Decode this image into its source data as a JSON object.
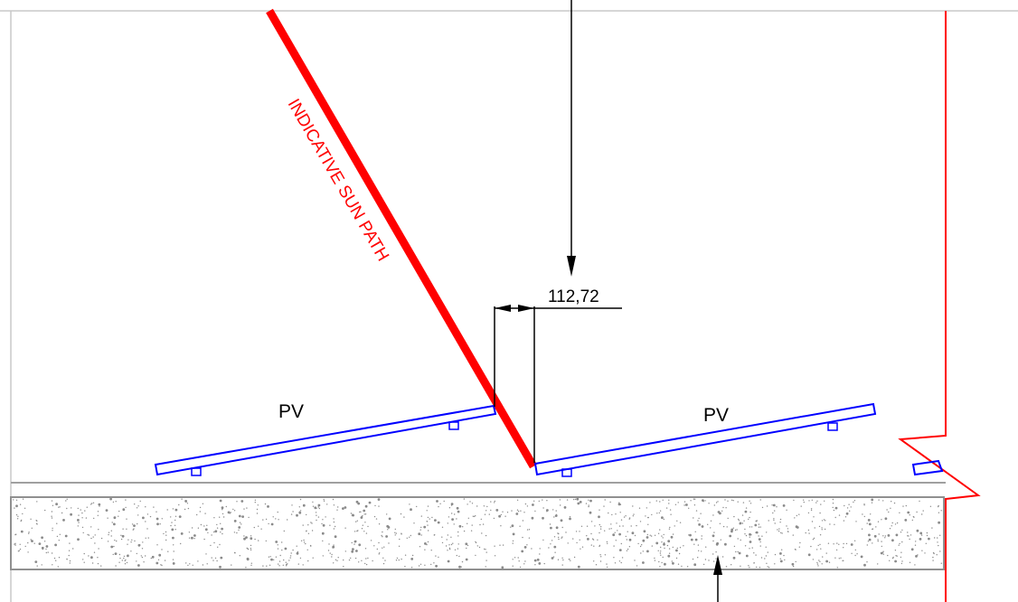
{
  "labels": {
    "sun_path": "INDICATIVE SUN PATH",
    "dimension": "112,72",
    "panel_left": "PV",
    "panel_right": "PV"
  },
  "colors": {
    "sun_path": "#ff0000",
    "panel_outline": "#0000ff",
    "parapet": "#ff0000",
    "dimension": "#000000",
    "slab_outline": "#808080",
    "slab_speckle": "#808080"
  }
}
